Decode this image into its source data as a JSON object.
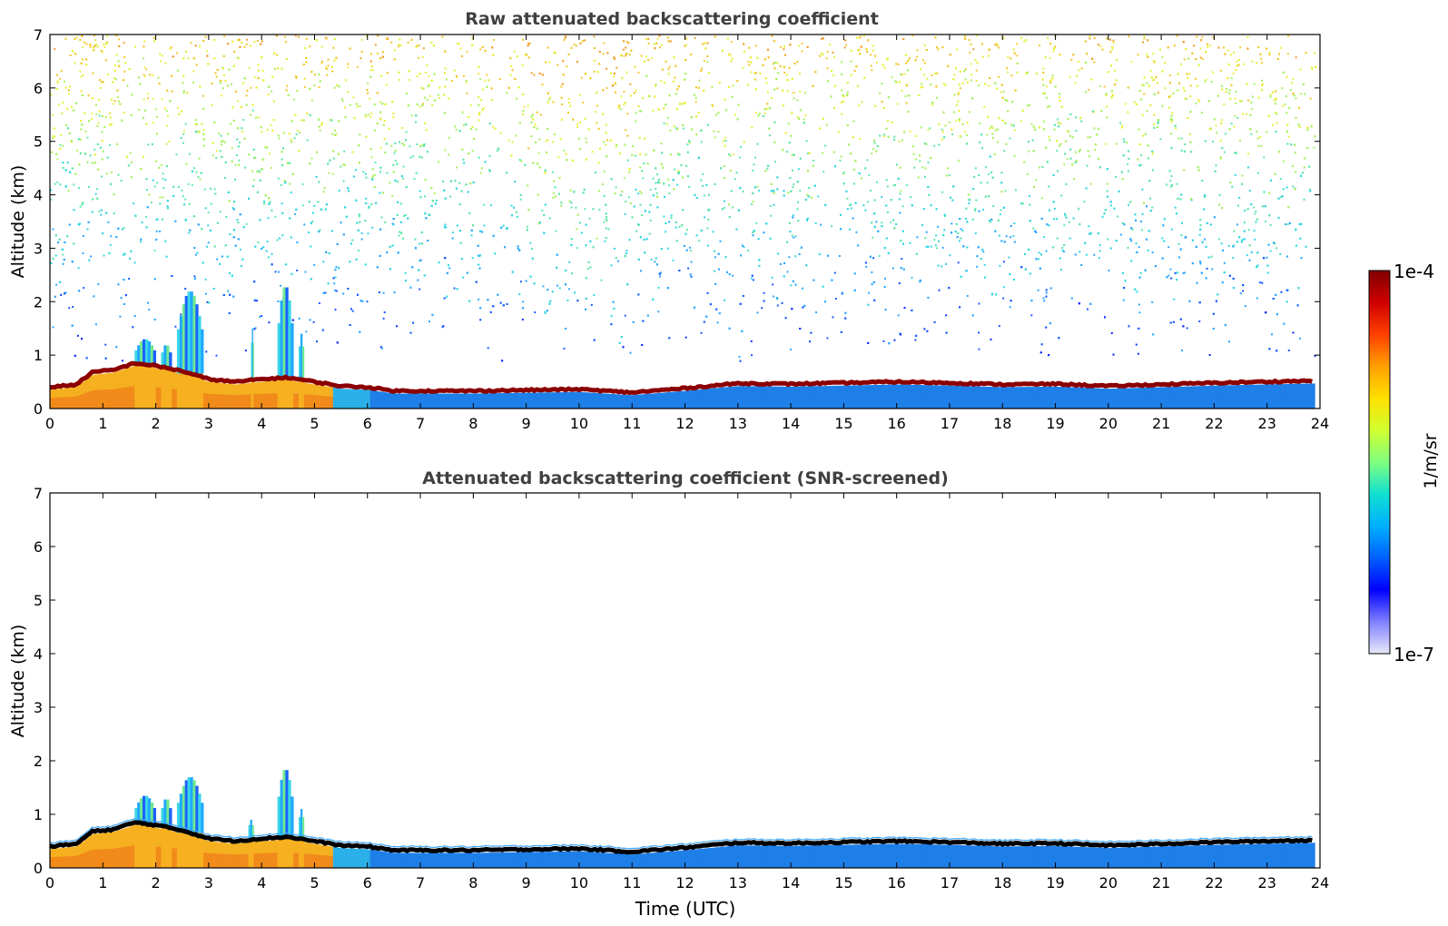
{
  "chart_data": [
    {
      "type": "heatmap",
      "title": "Raw attenuated backscattering coefficient",
      "ylabel": "Altitude (km)",
      "xlabel": "",
      "xlim": [
        0,
        24
      ],
      "ylim": [
        0,
        7
      ],
      "x_ticks": [
        "0",
        "1",
        "2",
        "3",
        "4",
        "5",
        "6",
        "7",
        "8",
        "9",
        "10",
        "11",
        "12",
        "13",
        "14",
        "15",
        "16",
        "17",
        "18",
        "19",
        "20",
        "21",
        "22",
        "23",
        "24"
      ],
      "y_ticks": [
        "0",
        "1",
        "2",
        "3",
        "4",
        "5",
        "6",
        "7"
      ],
      "data_end_hour": 23.9,
      "boundary_layer_top_km": [
        [
          0,
          0.4
        ],
        [
          0.5,
          0.45
        ],
        [
          0.8,
          0.68
        ],
        [
          1.2,
          0.72
        ],
        [
          1.6,
          0.85
        ],
        [
          2.0,
          0.8
        ],
        [
          2.5,
          0.7
        ],
        [
          3.0,
          0.55
        ],
        [
          3.5,
          0.5
        ],
        [
          4.0,
          0.55
        ],
        [
          4.5,
          0.58
        ],
        [
          5.0,
          0.5
        ],
        [
          5.5,
          0.42
        ],
        [
          6.0,
          0.4
        ],
        [
          6.5,
          0.33
        ],
        [
          8,
          0.33
        ],
        [
          10,
          0.36
        ],
        [
          11,
          0.3
        ],
        [
          12,
          0.38
        ],
        [
          13,
          0.47
        ],
        [
          14,
          0.46
        ],
        [
          16,
          0.5
        ],
        [
          17,
          0.48
        ],
        [
          18,
          0.45
        ],
        [
          19,
          0.46
        ],
        [
          20,
          0.42
        ],
        [
          22,
          0.48
        ],
        [
          23.9,
          0.52
        ]
      ],
      "plumes": [
        {
          "x0": 1.6,
          "x1": 2.0,
          "top_km": 1.3
        },
        {
          "x0": 2.1,
          "x1": 2.3,
          "top_km": 1.2
        },
        {
          "x0": 2.4,
          "x1": 2.9,
          "top_km": 2.2
        },
        {
          "x0": 3.8,
          "x1": 3.85,
          "top_km": 1.5
        },
        {
          "x0": 4.3,
          "x1": 4.6,
          "top_km": 2.3
        },
        {
          "x0": 4.7,
          "x1": 4.8,
          "top_km": 1.4
        }
      ]
    },
    {
      "type": "heatmap",
      "title": "Attenuated backscattering coefficient (SNR-screened)",
      "ylabel": "Altitude (km)",
      "xlabel": "Time (UTC)",
      "xlim": [
        0,
        24
      ],
      "ylim": [
        0,
        7
      ],
      "x_ticks": [
        "0",
        "1",
        "2",
        "3",
        "4",
        "5",
        "6",
        "7",
        "8",
        "9",
        "10",
        "11",
        "12",
        "13",
        "14",
        "15",
        "16",
        "17",
        "18",
        "19",
        "20",
        "21",
        "22",
        "23",
        "24"
      ],
      "y_ticks": [
        "0",
        "1",
        "2",
        "3",
        "4",
        "5",
        "6",
        "7"
      ],
      "data_end_hour": 23.9,
      "boundary_layer_top_km": [
        [
          0,
          0.4
        ],
        [
          0.5,
          0.45
        ],
        [
          0.8,
          0.68
        ],
        [
          1.2,
          0.72
        ],
        [
          1.6,
          0.85
        ],
        [
          2.0,
          0.8
        ],
        [
          2.5,
          0.7
        ],
        [
          3.0,
          0.55
        ],
        [
          3.5,
          0.5
        ],
        [
          4.0,
          0.55
        ],
        [
          4.5,
          0.58
        ],
        [
          5.0,
          0.5
        ],
        [
          5.5,
          0.42
        ],
        [
          6.0,
          0.4
        ],
        [
          6.5,
          0.33
        ],
        [
          8,
          0.33
        ],
        [
          10,
          0.36
        ],
        [
          11,
          0.3
        ],
        [
          12,
          0.38
        ],
        [
          13,
          0.47
        ],
        [
          14,
          0.46
        ],
        [
          16,
          0.5
        ],
        [
          17,
          0.48
        ],
        [
          18,
          0.45
        ],
        [
          19,
          0.46
        ],
        [
          20,
          0.42
        ],
        [
          22,
          0.48
        ],
        [
          23.9,
          0.52
        ]
      ],
      "plumes": [
        {
          "x0": 1.6,
          "x1": 2.0,
          "top_km": 1.35
        },
        {
          "x0": 2.1,
          "x1": 2.3,
          "top_km": 1.3
        },
        {
          "x0": 2.4,
          "x1": 2.9,
          "top_km": 1.7
        },
        {
          "x0": 3.75,
          "x1": 3.85,
          "top_km": 0.9
        },
        {
          "x0": 4.3,
          "x1": 4.6,
          "top_km": 1.85
        },
        {
          "x0": 4.7,
          "x1": 4.8,
          "top_km": 1.1
        }
      ]
    }
  ],
  "colorbar": {
    "label": "1/m/sr",
    "max_label": "1e-4",
    "min_label": "1e-7",
    "stops": [
      "#e8e8f8",
      "#8080ff",
      "#0000ff",
      "#0060ff",
      "#00b0ff",
      "#10e0d0",
      "#80ff80",
      "#d0ff30",
      "#ffe000",
      "#ffa000",
      "#ff4000",
      "#d00000",
      "#800000"
    ]
  }
}
